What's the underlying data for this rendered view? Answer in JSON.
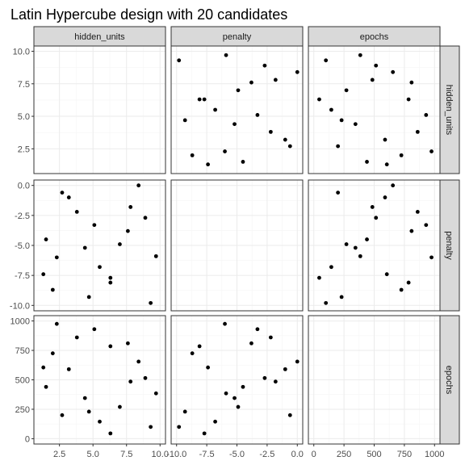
{
  "title": "Latin Hypercube design with 20 candidates",
  "chart_data": {
    "type": "scatter",
    "layout": "scatterplot-matrix",
    "title": "Latin Hypercube design with 20 candidates",
    "variables": [
      "hidden_units",
      "penalty",
      "epochs"
    ],
    "axes": {
      "hidden_units": {
        "range": [
          1,
          10
        ],
        "ticks": [
          2.5,
          5.0,
          7.5,
          10.0
        ],
        "tick_labels": [
          "2.5",
          "5.0",
          "7.5",
          "10.0"
        ]
      },
      "penalty": {
        "range": [
          -10,
          0
        ],
        "ticks": [
          -10.0,
          -7.5,
          -5.0,
          -2.5,
          0.0
        ],
        "tick_labels": [
          "-10.0",
          "-7.5",
          "-5.0",
          "-2.5",
          "0.0"
        ]
      },
      "epochs": {
        "range": [
          0,
          1000
        ],
        "ticks": [
          0,
          250,
          500,
          750,
          1000
        ],
        "tick_labels": [
          "0",
          "250",
          "500",
          "750",
          "1000"
        ]
      }
    },
    "grid": true,
    "diagonal": "empty",
    "candidates": [
      {
        "hidden_units": 1.3,
        "penalty": -7.4,
        "epochs": 605
      },
      {
        "hidden_units": 1.5,
        "penalty": -4.5,
        "epochs": 440
      },
      {
        "hidden_units": 2.0,
        "penalty": -8.7,
        "epochs": 725
      },
      {
        "hidden_units": 2.3,
        "penalty": -6.0,
        "epochs": 975
      },
      {
        "hidden_units": 2.7,
        "penalty": -0.6,
        "epochs": 200
      },
      {
        "hidden_units": 3.2,
        "penalty": -1.0,
        "epochs": 590
      },
      {
        "hidden_units": 3.8,
        "penalty": -2.2,
        "epochs": 860
      },
      {
        "hidden_units": 4.4,
        "penalty": -5.2,
        "epochs": 345
      },
      {
        "hidden_units": 4.7,
        "penalty": -9.3,
        "epochs": 230
      },
      {
        "hidden_units": 5.1,
        "penalty": -3.3,
        "epochs": 930
      },
      {
        "hidden_units": 5.5,
        "penalty": -6.8,
        "epochs": 145
      },
      {
        "hidden_units": 6.3,
        "penalty": -7.7,
        "epochs": 45
      },
      {
        "hidden_units": 6.3,
        "penalty": -8.1,
        "epochs": 785
      },
      {
        "hidden_units": 7.0,
        "penalty": -4.9,
        "epochs": 270
      },
      {
        "hidden_units": 7.6,
        "penalty": -3.8,
        "epochs": 810
      },
      {
        "hidden_units": 7.8,
        "penalty": -1.8,
        "epochs": 485
      },
      {
        "hidden_units": 8.4,
        "penalty": 0.0,
        "epochs": 655
      },
      {
        "hidden_units": 8.9,
        "penalty": -2.7,
        "epochs": 515
      },
      {
        "hidden_units": 9.3,
        "penalty": -9.8,
        "epochs": 100
      },
      {
        "hidden_units": 9.7,
        "penalty": -5.9,
        "epochs": 385
      }
    ]
  },
  "colors": {
    "point": "#000000",
    "panel_bg": "#ffffff",
    "panel_border": "#333333",
    "grid_major": "#ebebeb",
    "grid_minor": "#f5f5f5",
    "strip_bg": "#d9d9d9",
    "tick_text": "#4d4d4d"
  }
}
